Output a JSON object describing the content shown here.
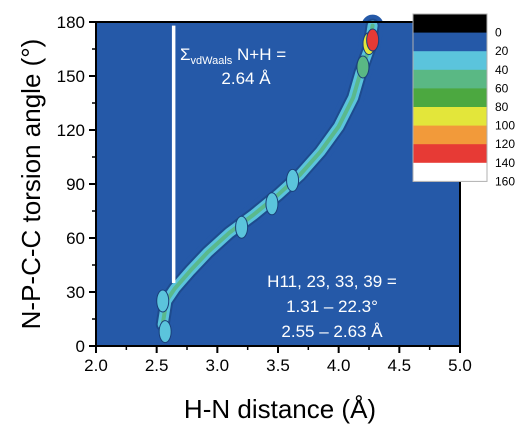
{
  "chart_data": {
    "type": "heatmap",
    "xlabel": "H-N distance (Å)",
    "ylabel": "N-P-C-C torsion angle (°)",
    "xlim": [
      2.0,
      5.0
    ],
    "ylim": [
      0,
      180
    ],
    "xticks": [
      "2.0",
      "2.5",
      "3.0",
      "3.5",
      "4.0",
      "4.5",
      "5.0"
    ],
    "yticks": [
      "0",
      "30",
      "60",
      "90",
      "120",
      "150",
      "180"
    ],
    "background_color": "#2559a8",
    "colorbar": {
      "levels": [
        "0",
        "20",
        "40",
        "60",
        "80",
        "100",
        "120",
        "140",
        "160"
      ],
      "colors": [
        "#000000",
        "#2559a8",
        "#5bc4dc",
        "#5ab884",
        "#4ca840",
        "#e3e63a",
        "#f29a3a",
        "#e73a35",
        "#ffffff"
      ]
    },
    "vdw_line": {
      "x": 2.64,
      "y_range": [
        35,
        178
      ],
      "label_prefix": "Σ",
      "label_subscript": "vdWaals",
      "label_suffix": " N+H =",
      "value": "2.64 Å"
    },
    "annotation": [
      "H11, 23, 33, 39 =",
      "1.31 – 22.3°",
      "2.55 – 2.63 Å"
    ],
    "density_path": [
      {
        "x": 2.55,
        "y": 12
      },
      {
        "x": 2.58,
        "y": 25
      },
      {
        "x": 2.65,
        "y": 32
      },
      {
        "x": 2.78,
        "y": 42
      },
      {
        "x": 2.92,
        "y": 52
      },
      {
        "x": 3.1,
        "y": 63
      },
      {
        "x": 3.3,
        "y": 73
      },
      {
        "x": 3.5,
        "y": 84
      },
      {
        "x": 3.68,
        "y": 95
      },
      {
        "x": 3.85,
        "y": 108
      },
      {
        "x": 4.0,
        "y": 122
      },
      {
        "x": 4.12,
        "y": 138
      },
      {
        "x": 4.18,
        "y": 152
      },
      {
        "x": 4.25,
        "y": 165
      },
      {
        "x": 4.28,
        "y": 178
      }
    ],
    "hotspots": [
      {
        "x": 2.55,
        "y": 25,
        "level": 40
      },
      {
        "x": 2.57,
        "y": 8,
        "level": 40
      },
      {
        "x": 3.2,
        "y": 66,
        "level": 40
      },
      {
        "x": 3.45,
        "y": 79,
        "level": 40
      },
      {
        "x": 3.62,
        "y": 92,
        "level": 40
      },
      {
        "x": 4.2,
        "y": 155,
        "level": 60
      },
      {
        "x": 4.25,
        "y": 168,
        "level": 100
      },
      {
        "x": 4.28,
        "y": 170,
        "level": 140
      }
    ]
  }
}
